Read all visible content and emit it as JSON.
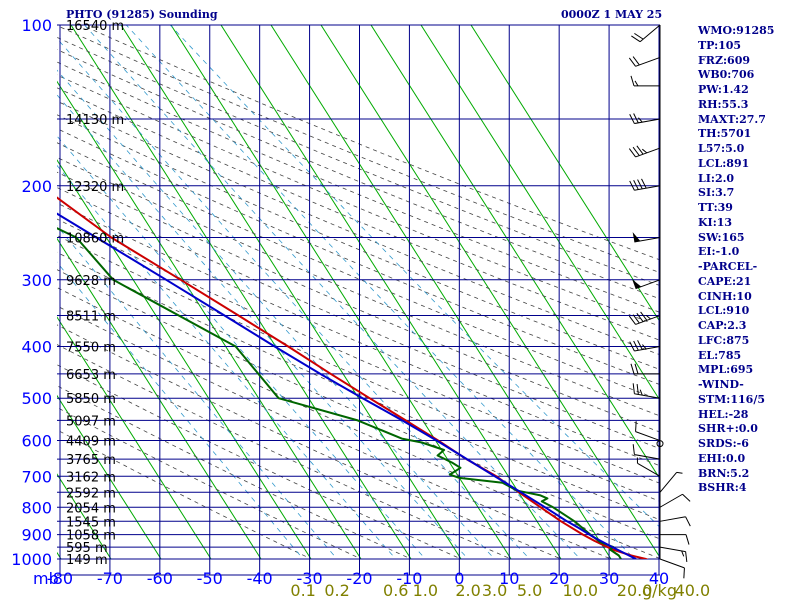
{
  "header": {
    "station": "PHTO (91285) Sounding",
    "time": "0000Z  1 MAY 25"
  },
  "indices": [
    "WMO:91285",
    "TP:105",
    "FRZ:609",
    "WB0:706",
    "PW:1.42",
    "RH:55.3",
    "MAXT:27.7",
    "TH:5701",
    "L57:5.0",
    "LCL:891",
    "LI:2.0",
    "SI:3.7",
    "TT:39",
    "KI:13",
    "SW:165",
    "EI:-1.0",
    "-PARCEL-",
    "CAPE:21",
    "CINH:10",
    "LCL:910",
    "CAP:2.3",
    "LFC:875",
    "EL:785",
    "MPL:695",
    "-WIND-",
    "STM:116/5",
    "HEL:-28",
    "SHR+:0.0",
    "SRDS:-6",
    "EHI:0.0",
    "BRN:5.2",
    "BSHR:4"
  ],
  "colors": {
    "background": "#ffffff",
    "grid": "#00008b",
    "isotherm": "#00aa00",
    "dry_adiabat": "#444444",
    "mixing_ratio": "#3399cc",
    "temperature": "#cc0000",
    "dewpoint": "#006600",
    "parcel": "#0000cc",
    "axis_text": "#0000ff",
    "mixing_text": "#808000"
  },
  "chart_data": {
    "type": "line",
    "chart_kind": "skew-T log-P sounding",
    "y_axis": {
      "scale": "log",
      "range": [
        1000,
        100
      ],
      "unit_label": "mb",
      "ticks": [
        100,
        200,
        300,
        400,
        500,
        600,
        700,
        800,
        900,
        1000
      ]
    },
    "x_axis": {
      "range": [
        -80,
        40
      ],
      "ticks": [
        -80,
        -70,
        -60,
        -50,
        -40,
        -30,
        -20,
        -10,
        0,
        10,
        20,
        30,
        40
      ]
    },
    "mixing_ratio_axis": {
      "unit_label": "g/kg",
      "ticks": [
        "0.1",
        "0.2",
        "0.6",
        "1.0",
        "2.0",
        "3.0",
        "5.0",
        "10.0",
        "20.0",
        "40.0"
      ]
    },
    "height_labels": [
      {
        "p": 100,
        "label": "16540 m"
      },
      {
        "p": 150,
        "label": "14130 m"
      },
      {
        "p": 200,
        "label": "12320 m"
      },
      {
        "p": 250,
        "label": "10860 m"
      },
      {
        "p": 300,
        "label": "9628 m"
      },
      {
        "p": 350,
        "label": "8511 m"
      },
      {
        "p": 400,
        "label": "7550 m"
      },
      {
        "p": 450,
        "label": "6653 m"
      },
      {
        "p": 500,
        "label": "5850 m"
      },
      {
        "p": 550,
        "label": "5097 m"
      },
      {
        "p": 600,
        "label": "4409 m"
      },
      {
        "p": 650,
        "label": "3765 m"
      },
      {
        "p": 700,
        "label": "3162 m"
      },
      {
        "p": 750,
        "label": "2592 m"
      },
      {
        "p": 800,
        "label": "2054 m"
      },
      {
        "p": 850,
        "label": "1545 m"
      },
      {
        "p": 900,
        "label": "1058 m"
      },
      {
        "p": 950,
        "label": "595 m"
      },
      {
        "p": 1000,
        "label": "149 m"
      }
    ],
    "series": [
      {
        "key": "temperature",
        "points": [
          [
            1006,
            27.5
          ],
          [
            1000,
            27
          ],
          [
            985,
            24.5
          ],
          [
            960,
            21.5
          ],
          [
            925,
            19.0
          ],
          [
            900,
            17.5
          ],
          [
            850,
            14.8
          ],
          [
            800,
            12.5
          ],
          [
            750,
            10.1
          ],
          [
            700,
            7.6
          ],
          [
            650,
            3.8
          ],
          [
            600,
            0.5
          ],
          [
            550,
            -3.4
          ],
          [
            500,
            -7.8
          ],
          [
            450,
            -12.5
          ],
          [
            400,
            -17.5
          ],
          [
            350,
            -23.5
          ],
          [
            300,
            -30.5
          ],
          [
            250,
            -39
          ],
          [
            200,
            -46.5
          ],
          [
            150,
            -56
          ],
          [
            125,
            -63
          ],
          [
            100,
            -73
          ]
        ]
      },
      {
        "key": "dewpoint",
        "points": [
          [
            1000,
            22
          ],
          [
            985,
            22
          ],
          [
            960,
            21
          ],
          [
            950,
            22
          ],
          [
            930,
            20
          ],
          [
            900,
            19
          ],
          [
            850,
            17.5
          ],
          [
            800,
            15
          ],
          [
            780,
            13.5
          ],
          [
            770,
            15
          ],
          [
            760,
            14
          ],
          [
            745,
            10
          ],
          [
            720,
            8
          ],
          [
            705,
            0
          ],
          [
            695,
            -1.5
          ],
          [
            675,
            1.5
          ],
          [
            660,
            0.5
          ],
          [
            640,
            -1.5
          ],
          [
            625,
            0.5
          ],
          [
            605,
            -3
          ],
          [
            595,
            -6.5
          ],
          [
            550,
            -13
          ],
          [
            500,
            -26
          ],
          [
            400,
            -28
          ],
          [
            300,
            -44
          ],
          [
            250,
            -46
          ],
          [
            200,
            -61
          ],
          [
            150,
            -77
          ]
        ]
      },
      {
        "key": "parcel",
        "points": [
          [
            1000,
            25
          ],
          [
            950,
            21.8
          ],
          [
            910,
            19.3
          ],
          [
            875,
            17.5
          ],
          [
            850,
            16
          ],
          [
            800,
            13.4
          ],
          [
            750,
            10.5
          ],
          [
            700,
            7.3
          ],
          [
            650,
            3.9
          ],
          [
            600,
            0.2
          ],
          [
            550,
            -4.1
          ],
          [
            500,
            -9.2
          ],
          [
            450,
            -14.6
          ],
          [
            400,
            -20.2
          ],
          [
            350,
            -26.3
          ],
          [
            300,
            -33.4
          ],
          [
            250,
            -42
          ],
          [
            200,
            -52.5
          ],
          [
            150,
            -65.5
          ],
          [
            140,
            -69
          ]
        ]
      }
    ],
    "wind_barbs": [
      {
        "p": 1000,
        "dir": 110,
        "spd": 10
      },
      {
        "p": 950,
        "dir": 100,
        "spd": 15
      },
      {
        "p": 900,
        "dir": 90,
        "spd": 10
      },
      {
        "p": 850,
        "dir": 80,
        "spd": 10
      },
      {
        "p": 800,
        "dir": 60,
        "spd": 10
      },
      {
        "p": 750,
        "dir": 40,
        "spd": 5
      },
      {
        "p": 700,
        "dir": 300,
        "spd": 5
      },
      {
        "p": 650,
        "dir": 280,
        "spd": 10
      },
      {
        "p": 600,
        "dir": 290,
        "spd": 10
      },
      {
        "p": 500,
        "dir": 280,
        "spd": 25
      },
      {
        "p": 450,
        "dir": 270,
        "spd": 20
      },
      {
        "p": 400,
        "dir": 260,
        "spd": 35
      },
      {
        "p": 350,
        "dir": 250,
        "spd": 45
      },
      {
        "p": 300,
        "dir": 250,
        "spd": 50
      },
      {
        "p": 250,
        "dir": 260,
        "spd": 50
      },
      {
        "p": 200,
        "dir": 260,
        "spd": 40
      },
      {
        "p": 170,
        "dir": 250,
        "spd": 35
      },
      {
        "p": 150,
        "dir": 260,
        "spd": 25
      },
      {
        "p": 130,
        "dir": 270,
        "spd": 15
      },
      {
        "p": 115,
        "dir": 250,
        "spd": 20
      },
      {
        "p": 100,
        "dir": 230,
        "spd": 20
      }
    ]
  }
}
